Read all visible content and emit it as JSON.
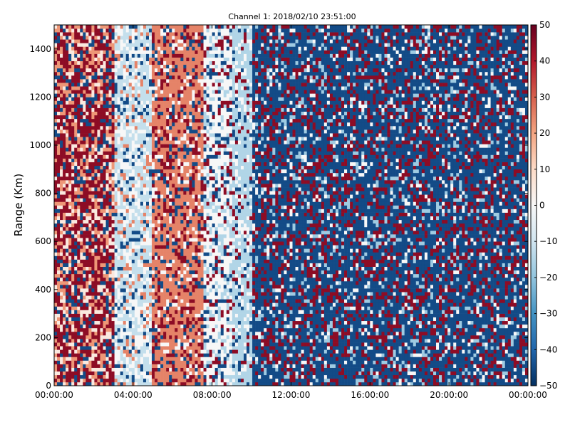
{
  "chart_data": {
    "type": "heatmap",
    "title": "Channel 1: 2018/02/10 23:51:00",
    "xlabel": "",
    "ylabel": "Range (Km)",
    "x_ticks": [
      "00:00:00",
      "04:00:00",
      "08:00:00",
      "12:00:00",
      "16:00:00",
      "20:00:00",
      "00:00:00"
    ],
    "x_tick_hours": [
      0,
      4,
      8,
      12,
      16,
      20,
      24
    ],
    "y_ticks": [
      0,
      200,
      400,
      600,
      800,
      1000,
      1200,
      1400
    ],
    "ylim": [
      0,
      1500
    ],
    "xlim_hours": [
      0,
      24
    ],
    "colorbar": {
      "min": -50,
      "max": 50,
      "ticks": [
        50,
        40,
        30,
        20,
        10,
        0,
        -10,
        -20,
        -30,
        -40,
        -50
      ],
      "colormap": "RdBu_r"
    },
    "time_segments": [
      {
        "start_h": 0.0,
        "end_h": 3.0,
        "regime": "mixed-red",
        "mean": 25
      },
      {
        "start_h": 3.0,
        "end_h": 5.0,
        "regime": "light-blue-white",
        "mean": -12
      },
      {
        "start_h": 5.0,
        "end_h": 7.5,
        "regime": "salmon",
        "mean": 22
      },
      {
        "start_h": 7.5,
        "end_h": 9.0,
        "regime": "white-mixed",
        "mean": 0
      },
      {
        "start_h": 9.0,
        "end_h": 10.0,
        "regime": "light-blue",
        "mean": -15
      },
      {
        "start_h": 10.0,
        "end_h": 24.0,
        "regime": "dark-blue-noise",
        "mean": -45
      }
    ]
  }
}
